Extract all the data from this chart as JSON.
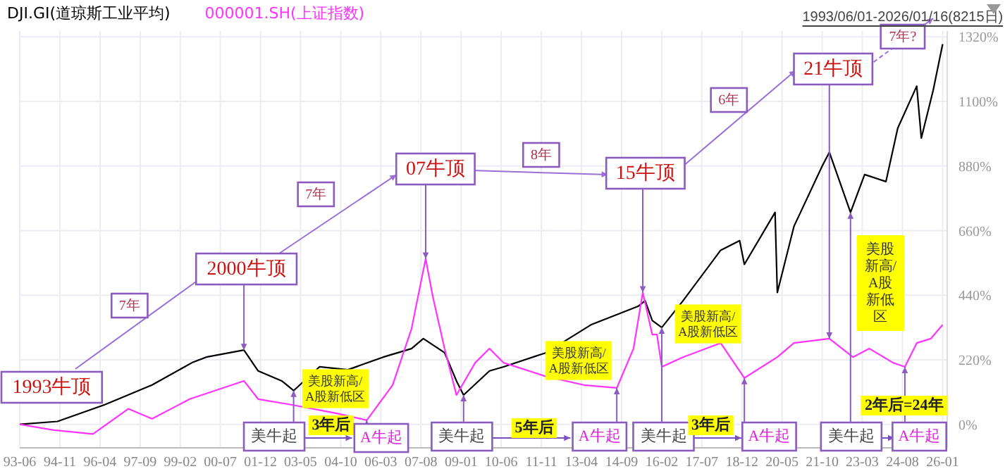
{
  "chart_data": {
    "type": "line",
    "marker": "none",
    "legend": "top left",
    "grid": true,
    "xlim": [
      "1993-06",
      "2026-03"
    ],
    "xticks": [
      {
        "value": "1993-06",
        "label": "93-06"
      },
      {
        "value": "1994-11",
        "label": "94-11"
      },
      {
        "value": "1996-04",
        "label": "96-04"
      },
      {
        "value": "1997-09",
        "label": "97-09"
      },
      {
        "value": "1999-02",
        "label": "99-02"
      },
      {
        "value": "2000-07",
        "label": "00-07"
      },
      {
        "value": "2001-12",
        "label": "01-12"
      },
      {
        "value": "2003-05",
        "label": "03-05"
      },
      {
        "value": "2004-10",
        "label": "04-10"
      },
      {
        "value": "2006-03",
        "label": "06-03"
      },
      {
        "value": "2007-08",
        "label": "07-08"
      },
      {
        "value": "2009-01",
        "label": "09-01"
      },
      {
        "value": "2010-06",
        "label": "10-06"
      },
      {
        "value": "2011-11",
        "label": "11-11"
      },
      {
        "value": "2013-04",
        "label": "13-04"
      },
      {
        "value": "2014-09",
        "label": "14-09"
      },
      {
        "value": "2016-02",
        "label": "16-02"
      },
      {
        "value": "2017-07",
        "label": "17-07"
      },
      {
        "value": "2018-12",
        "label": "18-12"
      },
      {
        "value": "2020-05",
        "label": "20-05"
      },
      {
        "value": "2021-10",
        "label": "21-10"
      },
      {
        "value": "2023-03",
        "label": "23-03"
      },
      {
        "value": "2024-08",
        "label": "24-08"
      },
      {
        "value": "2026-01",
        "label": "26-01"
      }
    ],
    "ylim": [
      -80,
      1340
    ],
    "yticks": [
      {
        "value": 0,
        "label": "0%"
      },
      {
        "value": 220,
        "label": "220%"
      },
      {
        "value": 440,
        "label": "440%"
      },
      {
        "value": 660,
        "label": "660%"
      },
      {
        "value": 880,
        "label": "880%"
      },
      {
        "value": 1100,
        "label": "1100%"
      },
      {
        "value": 1320,
        "label": "1320%"
      }
    ],
    "series": [
      {
        "name": "DJI.GI(道琼斯工业平均)",
        "color": "#000000",
        "x": [
          "1993-06",
          "1994-10",
          "1996-06",
          "1998-02",
          "1999-07",
          "2000-01",
          "2001-05",
          "2001-11",
          "2002-09",
          "2003-02",
          "2004-01",
          "2005-01",
          "2006-04",
          "2007-04",
          "2007-09",
          "2008-06",
          "2008-11",
          "2009-02",
          "2010-01",
          "2010-07",
          "2012-01",
          "2013-08",
          "2015-04",
          "2015-07",
          "2015-10",
          "2016-02",
          "2016-11",
          "2018-03",
          "2018-11",
          "2019-01",
          "2020-02",
          "2020-03",
          "2020-10",
          "2021-10",
          "2022-01",
          "2022-10",
          "2023-04",
          "2024-01",
          "2024-06",
          "2025-02",
          "2025-04",
          "2025-09",
          "2026-01"
        ],
        "values": [
          0,
          10,
          67,
          134,
          210,
          229,
          253,
          182,
          148,
          115,
          196,
          186,
          229,
          258,
          292,
          244,
          148,
          100,
          182,
          196,
          244,
          339,
          402,
          421,
          354,
          330,
          421,
          593,
          626,
          545,
          722,
          449,
          674,
          880,
          927,
          722,
          851,
          827,
          1009,
          1152,
          975,
          1138,
          1295
        ]
      },
      {
        "name": "000001.SH(上证指数)",
        "color": "#ff33ff",
        "x": [
          "1993-06",
          "1994-08",
          "1996-01",
          "1997-04",
          "1998-02",
          "1999-06",
          "2001-05",
          "2001-11",
          "2003-01",
          "2004-08",
          "2005-09",
          "2006-08",
          "2007-04",
          "2007-10",
          "2008-01",
          "2008-06",
          "2008-11",
          "2009-07",
          "2010-01",
          "2010-07",
          "2012-01",
          "2013-05",
          "2014-07",
          "2015-02",
          "2015-06",
          "2015-10",
          "2015-12",
          "2016-02",
          "2016-11",
          "2018-03",
          "2019-01",
          "2020-03",
          "2020-10",
          "2022-01",
          "2022-11",
          "2023-06",
          "2024-04",
          "2024-09",
          "2025-02",
          "2025-08",
          "2026-01"
        ],
        "values": [
          0,
          -19,
          -33,
          53,
          19,
          86,
          148,
          86,
          67,
          38,
          14,
          134,
          325,
          564,
          435,
          258,
          100,
          210,
          258,
          210,
          163,
          134,
          124,
          258,
          449,
          306,
          306,
          196,
          229,
          277,
          158,
          229,
          277,
          292,
          229,
          258,
          210,
          196,
          277,
          292,
          339
        ]
      }
    ],
    "annotations": [
      "1993牛顶",
      "7年",
      {
        "text": "2000牛顶",
        "x": "2001-05",
        "y": 253
      },
      "7年",
      {
        "text": "07牛顶",
        "x": "2007-10",
        "y": 564
      },
      "8年",
      {
        "text": "15牛顶",
        "x": "2015-06",
        "y": 449
      },
      "6年",
      {
        "text": "21牛顶",
        "x": "2022-01",
        "y": 292
      },
      "7年?",
      "美股新高/A股新低区",
      "美股新高/A股新低区",
      "美股新高/A股新低区",
      "美股新高/A股新低区",
      {
        "text": "美牛起",
        "x": "2003-02",
        "y": 115
      },
      "3年后",
      {
        "text": "A牛起",
        "x": "2005-09",
        "y": 14
      },
      {
        "text": "美牛起",
        "x": "2009-02",
        "y": 100
      },
      "5年后",
      {
        "text": "A牛起",
        "x": "2014-07",
        "y": 124
      },
      {
        "text": "美牛起",
        "x": "2016-02",
        "y": 330
      },
      "3年后",
      {
        "text": "A牛起",
        "x": "2019-01",
        "y": 158
      },
      {
        "text": "美牛起",
        "x": "2022-10",
        "y": 722
      },
      "2年后=24年",
      {
        "text": "A牛起",
        "x": "2024-09",
        "y": 196
      },
      "1993/06/01-2026/01/16(8215日)"
    ]
  }
}
